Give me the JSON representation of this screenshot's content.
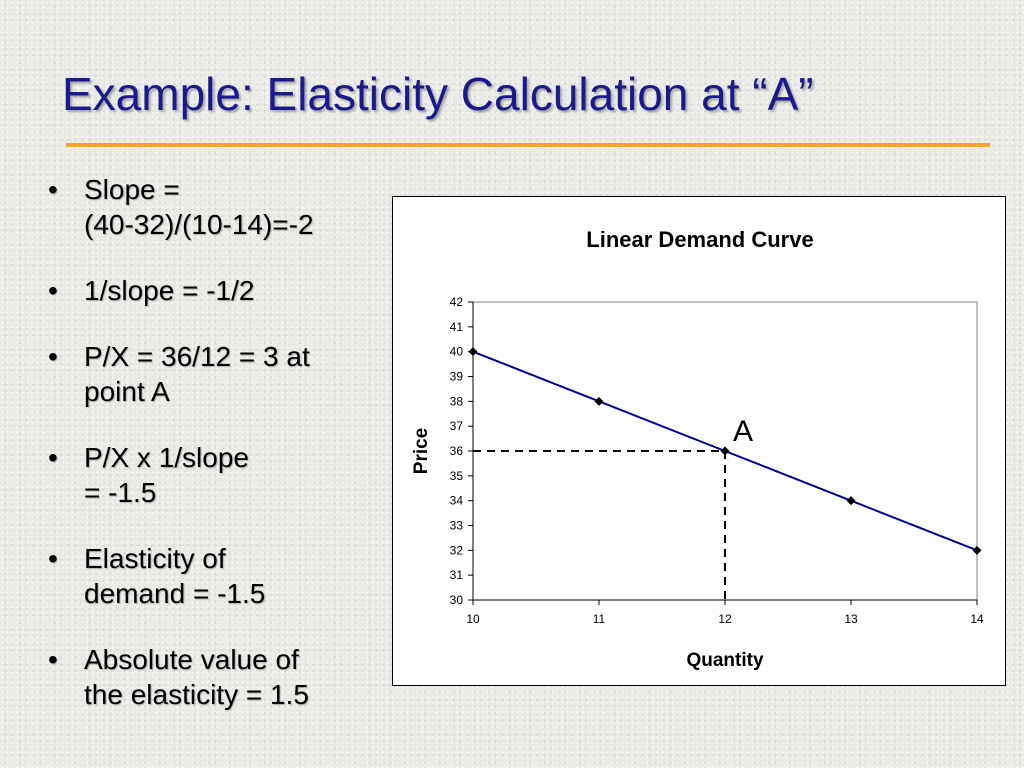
{
  "slide": {
    "title": "Example: Elasticity Calculation at “A”",
    "bullet_glyph": "•",
    "bullets": [
      {
        "lines": [
          "Slope =",
          "(40-32)/(10-14)=-2"
        ]
      },
      {
        "lines": [
          "1/slope = -1/2"
        ]
      },
      {
        "lines": [
          "P/X = 36/12 = 3 at",
          "point A"
        ]
      },
      {
        "lines": [
          "P/X x 1/slope",
          "= -1.5"
        ]
      },
      {
        "lines": [
          "Elasticity of",
          "demand = -1.5"
        ]
      },
      {
        "lines": [
          "Absolute value of",
          "the elasticity = 1.5"
        ]
      }
    ],
    "colors": {
      "title": "#1a1a8c",
      "rule": "#f5a623",
      "line": "#00008b",
      "marker": "#000000"
    }
  },
  "chart_data": {
    "type": "line",
    "title": "Linear Demand Curve",
    "xlabel": "Quantity",
    "ylabel": "Price",
    "x": [
      10,
      11,
      12,
      13,
      14
    ],
    "series": [
      {
        "values": [
          40,
          38,
          36,
          34,
          32
        ]
      }
    ],
    "xlim": [
      10,
      14
    ],
    "ylim": [
      30,
      42
    ],
    "x_ticks": [
      10,
      11,
      12,
      13,
      14
    ],
    "y_ticks": [
      30,
      31,
      32,
      33,
      34,
      35,
      36,
      37,
      38,
      39,
      40,
      41,
      42
    ],
    "grid": false,
    "legend": "none",
    "marker": "diamond",
    "annotations": [
      {
        "text": "A",
        "x": 12,
        "y": 36,
        "dashed_guides": true
      }
    ]
  }
}
